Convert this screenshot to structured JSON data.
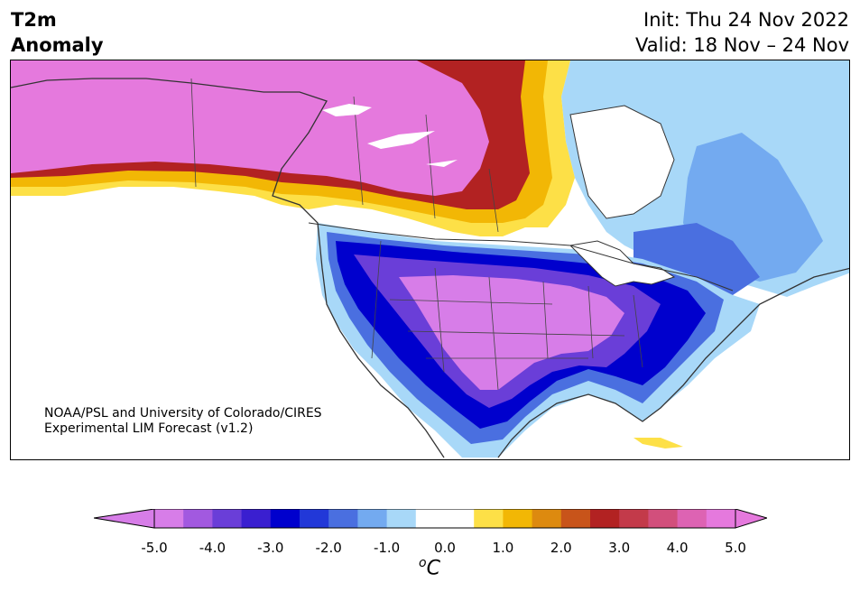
{
  "title": {
    "line1": "T2m",
    "line2": "Anomaly"
  },
  "run_info": {
    "init": "Init: Thu 24 Nov 2022",
    "valid": "Valid: 18 Nov – 24 Nov"
  },
  "credit": {
    "line1": "NOAA/PSL and University of Colorado/CIRES",
    "line2": "Experimental LIM Forecast (v1.2)"
  },
  "colorbar": {
    "unit_base": "C",
    "unit_sup": "o",
    "min": -5.0,
    "max": 5.0,
    "ticks": [
      "-5.0",
      "-4.0",
      "-3.0",
      "-2.0",
      "-1.0",
      "0.0",
      "1.0",
      "2.0",
      "3.0",
      "4.0",
      "5.0"
    ],
    "colors": [
      "#d77de8",
      "#a259e0",
      "#6a3ed8",
      "#3a1fd0",
      "#0000cd",
      "#2238d8",
      "#4a6fe0",
      "#73aaf0",
      "#a8d8f8",
      "#ffffff",
      "#ffffff",
      "#fde047",
      "#f2b705",
      "#dd8a0f",
      "#c8541a",
      "#b22222",
      "#c33a4a",
      "#d24f7c",
      "#dd63b3",
      "#e579dd"
    ]
  }
}
